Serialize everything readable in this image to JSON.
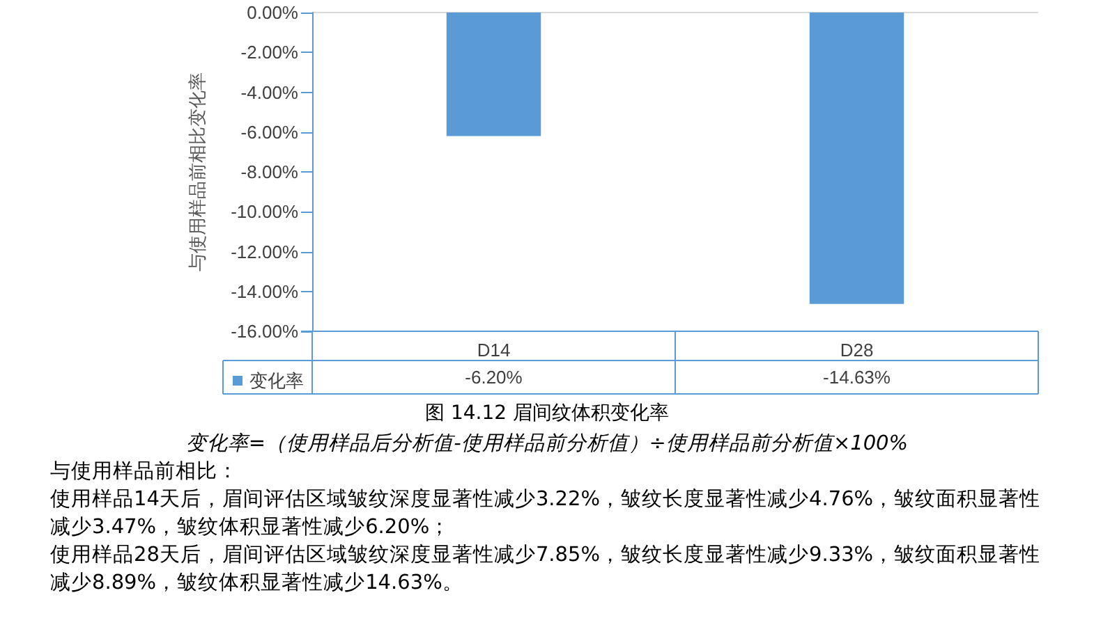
{
  "chart_data": {
    "type": "bar",
    "title": "图 14.12 眉间纹体积变化率",
    "ylabel": "与使用样品前相比变化率",
    "categories": [
      "D14",
      "D28"
    ],
    "series": [
      {
        "name": "变化率",
        "color": "#5b9bd5",
        "values": [
          -6.2,
          -14.63
        ],
        "value_labels": [
          "-6.20%",
          "-14.63%"
        ]
      }
    ],
    "ylim": [
      -16,
      0
    ],
    "yticks": [
      {
        "value": 0,
        "label": "0.00%"
      },
      {
        "value": -2,
        "label": "-2.00%"
      },
      {
        "value": -4,
        "label": "-4.00%"
      },
      {
        "value": -6,
        "label": "-6.00%"
      },
      {
        "value": -8,
        "label": "-8.00%"
      },
      {
        "value": -10,
        "label": "-10.00%"
      },
      {
        "value": -12,
        "label": "-12.00%"
      },
      {
        "value": -14,
        "label": "-14.00%"
      },
      {
        "value": -16,
        "label": "-16.00%"
      }
    ],
    "grid": false,
    "legend": "bottom left",
    "annotations": [
      "变化率=（使用样品后分析值-使用样品前分析值）÷使用样品前分析值×100%",
      "与使用样品前相比：",
      "使用样品14天后，眉间评估区域皱纹深度显著性减少3.22%，皱纹长度显著性减少4.76%，皱纹面积显著性减少3.47%，皱纹体积显著性减少6.20%；",
      "使用样品28天后，眉间评估区域皱纹深度显著性减少7.85%，皱纹长度显著性减少9.33%，皱纹面积显著性减少8.89%，皱纹体积显著性减少14.63%。"
    ]
  }
}
